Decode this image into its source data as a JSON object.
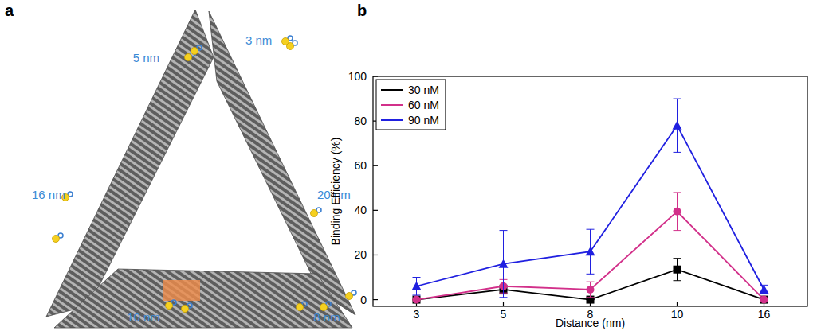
{
  "panels": [
    "a",
    "b"
  ],
  "diagram": {
    "labels": [
      "5 nm",
      "3 nm",
      "16 nm",
      "20 nm",
      "10 nm",
      "8 nm"
    ]
  },
  "chart_data": {
    "type": "line",
    "x_label": "Distance (nm)",
    "y_label": "Binding Efficiency (%)",
    "categories": [
      "3",
      "5",
      "8",
      "10",
      "16"
    ],
    "series": [
      {
        "name": "30 nM",
        "color": "#000000",
        "marker": "square",
        "values": [
          0,
          4.5,
          0,
          13.5,
          0
        ],
        "errors": [
          0,
          2,
          0,
          5,
          0
        ]
      },
      {
        "name": "60 nM",
        "color": "#d2308a",
        "marker": "circle",
        "values": [
          0,
          6,
          4.5,
          39.5,
          0
        ],
        "errors": [
          0,
          3,
          3.5,
          8.5,
          0
        ]
      },
      {
        "name": "90 nM",
        "color": "#2020e0",
        "marker": "triangle",
        "values": [
          6,
          16,
          21.5,
          78,
          4.5
        ],
        "errors": [
          4,
          15,
          10,
          12,
          2
        ]
      }
    ],
    "ylim": [
      -3,
      100
    ],
    "yticks": [
      0,
      20,
      40,
      60,
      80,
      100
    ],
    "legend": "upper left",
    "grid": false
  }
}
